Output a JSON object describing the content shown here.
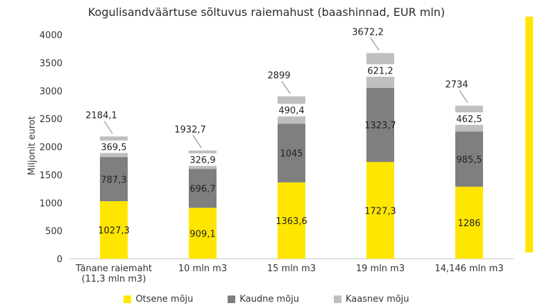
{
  "chart_data": {
    "type": "bar",
    "stacked": true,
    "title": "Kogulisandväärtuse sõltuvus raiemahust (baashinnad, EUR mln)",
    "ylabel": "Miljonit eurot",
    "xlabel": "",
    "ylim": [
      0,
      4000
    ],
    "yticks": [
      0,
      500,
      1000,
      1500,
      2000,
      2500,
      3000,
      3500,
      4000
    ],
    "grid": false,
    "legend_position": "bottom",
    "categories": [
      [
        "Tänane raiemaht",
        "(11,3 mln m3)"
      ],
      [
        "10 mln m3"
      ],
      [
        "15 mln m3"
      ],
      [
        "19 mln m3"
      ],
      [
        "14,146 mln m3"
      ]
    ],
    "series": [
      {
        "name": "Otsene mõju",
        "color": "#FFE600",
        "values": [
          1027.3,
          909.1,
          1363.6,
          1727.3,
          1286
        ],
        "labels": [
          "1027,3",
          "909,1",
          "1363,6",
          "1727,3",
          "1286"
        ]
      },
      {
        "name": "Kaudne mõju",
        "color": "#7F7F7F",
        "values": [
          787.3,
          696.7,
          1045,
          1323.7,
          985.5
        ],
        "labels": [
          "787,3",
          "696,7",
          "1045",
          "1323,7",
          "985,5"
        ]
      },
      {
        "name": "Kaasnev mõju",
        "color": "#BFBFBF",
        "values": [
          369.5,
          326.9,
          490.4,
          621.2,
          462.5
        ],
        "labels": [
          "369,5",
          "326,9",
          "490,4",
          "621,2",
          "462,5"
        ]
      }
    ],
    "totals": [
      "2184,1",
      "1932,7",
      "2899",
      "3672,2",
      "2734"
    ]
  },
  "accent_color": "#FFE600"
}
